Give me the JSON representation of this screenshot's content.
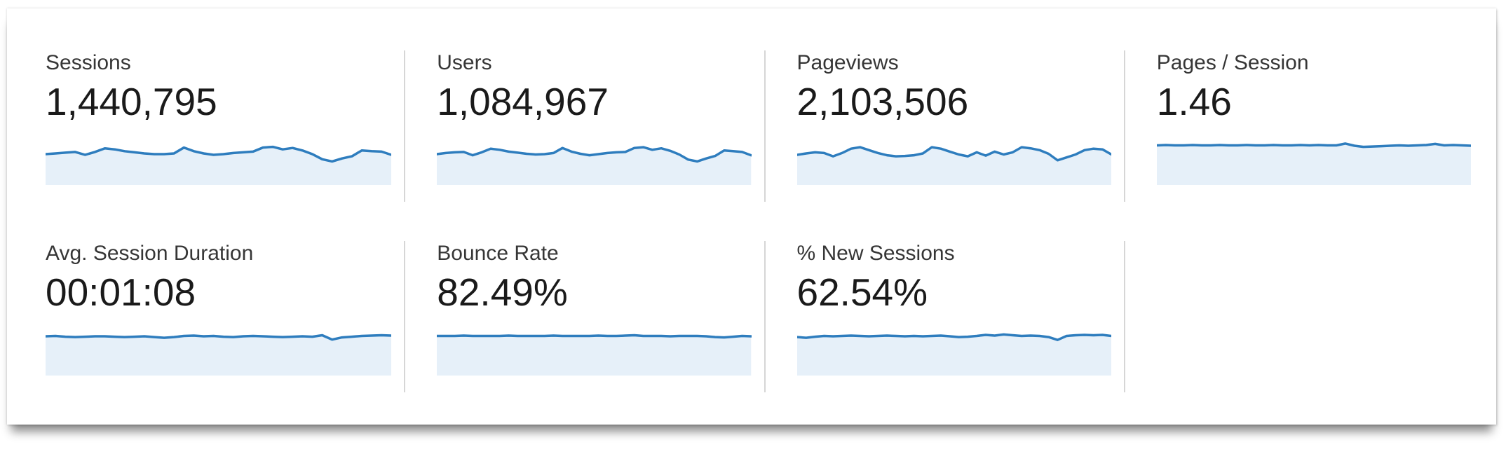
{
  "panel": {
    "name": "analytics-overview-scorecards"
  },
  "colors": {
    "spark_line": "#2e7dbe",
    "spark_fill": "#e6f0f9",
    "divider": "#d6d6d6",
    "label_text": "#363636",
    "value_text": "#1a1a1a"
  },
  "metrics": [
    {
      "id": "sessions",
      "label": "Sessions",
      "value": "1,440,795"
    },
    {
      "id": "users",
      "label": "Users",
      "value": "1,084,967"
    },
    {
      "id": "pageviews",
      "label": "Pageviews",
      "value": "2,103,506"
    },
    {
      "id": "pages-per-session",
      "label": "Pages / Session",
      "value": "1.46"
    },
    {
      "id": "avg-session-duration",
      "label": "Avg. Session Duration",
      "value": "00:01:08"
    },
    {
      "id": "bounce-rate",
      "label": "Bounce Rate",
      "value": "82.49%"
    },
    {
      "id": "percent-new-sessions",
      "label": "% New Sessions",
      "value": "62.54%"
    }
  ],
  "chart_data": [
    {
      "type": "line",
      "title": "Sessions",
      "total": "1,440,795",
      "xlabel": "time index (unlabeled sparkline)",
      "ylabel": "relative level (normalized 0-1, estimated from pixels)",
      "ylim": [
        0,
        1
      ],
      "grid": false,
      "legend": "none",
      "values": [
        0.5,
        0.52,
        0.54,
        0.56,
        0.48,
        0.56,
        0.66,
        0.63,
        0.58,
        0.55,
        0.52,
        0.5,
        0.5,
        0.52,
        0.68,
        0.58,
        0.52,
        0.48,
        0.5,
        0.53,
        0.55,
        0.57,
        0.68,
        0.7,
        0.63,
        0.67,
        0.6,
        0.5,
        0.36,
        0.3,
        0.38,
        0.44,
        0.6,
        0.58,
        0.57,
        0.48
      ]
    },
    {
      "type": "line",
      "title": "Users",
      "total": "1,084,967",
      "xlabel": "time index (unlabeled sparkline)",
      "ylabel": "relative level (normalized 0-1, estimated from pixels)",
      "ylim": [
        0,
        1
      ],
      "grid": false,
      "legend": "none",
      "values": [
        0.5,
        0.53,
        0.55,
        0.56,
        0.47,
        0.55,
        0.65,
        0.62,
        0.57,
        0.54,
        0.51,
        0.49,
        0.5,
        0.53,
        0.67,
        0.57,
        0.51,
        0.47,
        0.5,
        0.53,
        0.55,
        0.56,
        0.67,
        0.69,
        0.62,
        0.66,
        0.59,
        0.49,
        0.35,
        0.3,
        0.38,
        0.45,
        0.6,
        0.58,
        0.56,
        0.47
      ]
    },
    {
      "type": "line",
      "title": "Pageviews",
      "total": "2,103,506",
      "xlabel": "time index (unlabeled sparkline)",
      "ylabel": "relative level (normalized 0-1, estimated from pixels)",
      "ylim": [
        0,
        1
      ],
      "grid": false,
      "legend": "none",
      "values": [
        0.48,
        0.52,
        0.55,
        0.53,
        0.44,
        0.53,
        0.65,
        0.69,
        0.61,
        0.53,
        0.47,
        0.44,
        0.45,
        0.47,
        0.52,
        0.69,
        0.65,
        0.57,
        0.49,
        0.44,
        0.55,
        0.46,
        0.57,
        0.49,
        0.55,
        0.69,
        0.66,
        0.61,
        0.51,
        0.33,
        0.41,
        0.49,
        0.61,
        0.65,
        0.63,
        0.49
      ]
    },
    {
      "type": "line",
      "title": "Pages / Session",
      "total": "1.46",
      "xlabel": "time index (unlabeled sparkline)",
      "ylabel": "relative level (normalized 0-1, estimated from pixels)",
      "ylim": [
        0,
        1
      ],
      "grid": false,
      "legend": "none",
      "values": [
        0.74,
        0.75,
        0.74,
        0.74,
        0.75,
        0.74,
        0.74,
        0.75,
        0.74,
        0.74,
        0.75,
        0.74,
        0.74,
        0.75,
        0.74,
        0.74,
        0.75,
        0.74,
        0.75,
        0.74,
        0.74,
        0.79,
        0.73,
        0.7,
        0.71,
        0.72,
        0.73,
        0.74,
        0.73,
        0.74,
        0.75,
        0.78,
        0.74,
        0.75,
        0.74,
        0.73
      ]
    },
    {
      "type": "line",
      "title": "Avg. Session Duration",
      "total": "00:01:08",
      "xlabel": "time index (unlabeled sparkline)",
      "ylabel": "relative level (normalized 0-1, estimated from pixels)",
      "ylim": [
        0,
        1
      ],
      "grid": false,
      "legend": "none",
      "values": [
        0.73,
        0.74,
        0.72,
        0.71,
        0.72,
        0.73,
        0.73,
        0.72,
        0.71,
        0.72,
        0.73,
        0.71,
        0.69,
        0.71,
        0.74,
        0.75,
        0.73,
        0.74,
        0.72,
        0.71,
        0.73,
        0.74,
        0.73,
        0.72,
        0.71,
        0.72,
        0.73,
        0.72,
        0.76,
        0.64,
        0.7,
        0.72,
        0.74,
        0.75,
        0.76,
        0.75
      ]
    },
    {
      "type": "line",
      "title": "Bounce Rate",
      "total": "82.49%",
      "xlabel": "time index (unlabeled sparkline)",
      "ylabel": "relative level (normalized 0-1, estimated from pixels)",
      "ylim": [
        0,
        1
      ],
      "grid": false,
      "legend": "none",
      "values": [
        0.74,
        0.74,
        0.74,
        0.75,
        0.74,
        0.74,
        0.74,
        0.74,
        0.75,
        0.74,
        0.74,
        0.74,
        0.74,
        0.75,
        0.74,
        0.74,
        0.74,
        0.74,
        0.75,
        0.74,
        0.74,
        0.75,
        0.76,
        0.74,
        0.74,
        0.74,
        0.73,
        0.74,
        0.74,
        0.74,
        0.73,
        0.71,
        0.7,
        0.72,
        0.74,
        0.73
      ]
    },
    {
      "type": "line",
      "title": "% New Sessions",
      "total": "62.54%",
      "xlabel": "time index (unlabeled sparkline)",
      "ylabel": "relative level (normalized 0-1, estimated from pixels)",
      "ylim": [
        0,
        1
      ],
      "grid": false,
      "legend": "none",
      "values": [
        0.71,
        0.69,
        0.72,
        0.74,
        0.73,
        0.74,
        0.75,
        0.74,
        0.73,
        0.74,
        0.75,
        0.74,
        0.73,
        0.74,
        0.73,
        0.74,
        0.75,
        0.73,
        0.71,
        0.72,
        0.74,
        0.77,
        0.75,
        0.78,
        0.76,
        0.74,
        0.75,
        0.74,
        0.71,
        0.63,
        0.74,
        0.76,
        0.77,
        0.76,
        0.77,
        0.74
      ]
    }
  ]
}
